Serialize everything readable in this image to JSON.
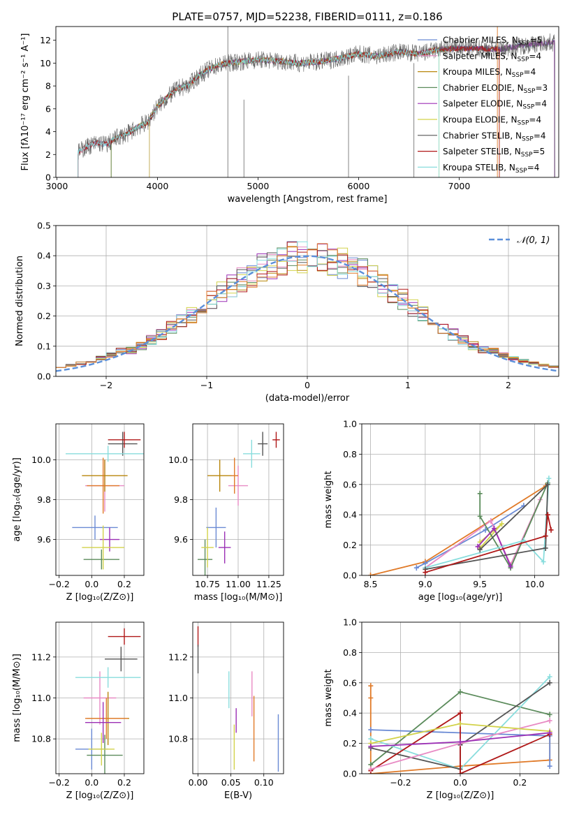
{
  "colors": {
    "miles_chabrier": "#6a8ad4",
    "miles_salpeter": "#e88ac4",
    "miles_kroupa": "#b8860b",
    "elodie_chabrier": "#5b8b5b",
    "elodie_salpeter": "#9b2fb5",
    "elodie_kroupa": "#d2d24a",
    "stelib_chabrier": "#555555",
    "stelib_salpeter": "#b01818",
    "stelib_kroupa": "#88dddd",
    "orange": "#e07a28",
    "normal_curve": "#5b8fd9"
  },
  "chart_data": [
    {
      "id": "spectrum",
      "type": "line",
      "title": "PLATE=0757, MJD=52238, FIBERID=0111, z=0.186",
      "xlabel": "wavelength [Angstrom, rest frame]",
      "ylabel": "Flux [fλ10⁻¹⁷ erg cm⁻² s⁻¹ A⁻¹]",
      "xlim": [
        2990,
        7990
      ],
      "ylim": [
        0,
        13.2
      ],
      "xticks": [
        "3000",
        "4000",
        "5000",
        "6000",
        "7000"
      ],
      "yticks": [
        "0",
        "2",
        "4",
        "6",
        "8",
        "10",
        "12"
      ],
      "legend_position": "upper-right",
      "legend": [
        {
          "label": "Chabrier MILES, N",
          "sub": "SSP",
          "suffix": "=5",
          "color_key": "miles_chabrier"
        },
        {
          "label": "Salpeter MILES, N",
          "sub": "SSP",
          "suffix": "=4",
          "color_key": "miles_salpeter"
        },
        {
          "label": "Kroupa MILES, N",
          "sub": "SSP",
          "suffix": "=4",
          "color_key": "miles_kroupa"
        },
        {
          "label": "Chabrier ELODIE, N",
          "sub": "SSP",
          "suffix": "=3",
          "color_key": "elodie_chabrier"
        },
        {
          "label": "Salpeter ELODIE, N",
          "sub": "SSP",
          "suffix": "=4",
          "color_key": "elodie_salpeter"
        },
        {
          "label": "Kroupa ELODIE, N",
          "sub": "SSP",
          "suffix": "=4",
          "color_key": "elodie_kroupa"
        },
        {
          "label": "Chabrier STELIB, N",
          "sub": "SSP",
          "suffix": "=4",
          "color_key": "stelib_chabrier"
        },
        {
          "label": "Salpeter STELIB, N",
          "sub": "SSP",
          "suffix": "=5",
          "color_key": "stelib_salpeter"
        },
        {
          "label": "Kroupa STELIB, N",
          "sub": "SSP",
          "suffix": "=4",
          "color_key": "stelib_kroupa"
        }
      ],
      "continuum": {
        "x": [
          3210,
          3300,
          3400,
          3500,
          3600,
          3700,
          3800,
          3900,
          4000,
          4100,
          4200,
          4300,
          4400,
          4500,
          4600,
          4700,
          4800,
          4900,
          5000,
          5200,
          5400,
          5600,
          5800,
          6000,
          6200,
          6400,
          6600,
          6800,
          7000,
          7200,
          7400,
          7600,
          7900
        ],
        "y": [
          2.2,
          2.7,
          3.0,
          2.9,
          3.5,
          3.8,
          4.4,
          4.8,
          6.2,
          7.0,
          7.8,
          8.0,
          8.8,
          9.4,
          9.8,
          10.0,
          10.1,
          10.2,
          10.3,
          10.2,
          10.0,
          10.1,
          10.4,
          10.8,
          10.6,
          11.0,
          10.8,
          11.2,
          11.3,
          11.3,
          11.2,
          11.5,
          11.8
        ]
      },
      "start_wavelengths": [
        3210,
        3210,
        3540,
        3540,
        3920,
        3920,
        3210,
        3210,
        3210
      ],
      "end_wavelengths": [
        7950,
        7950,
        7400,
        7950,
        7950,
        6800,
        7950,
        7400,
        6800
      ]
    },
    {
      "id": "residuals",
      "type": "histogram",
      "xlabel": "(data-model)/error",
      "ylabel": "Normed distribution",
      "xlim": [
        -2.5,
        2.5
      ],
      "ylim": [
        0,
        0.5
      ],
      "xticks": [
        "−2",
        "−1",
        "0",
        "1",
        "2"
      ],
      "yticks": [
        "0.0",
        "0.1",
        "0.2",
        "0.3",
        "0.4",
        "0.5"
      ],
      "bin_width": 0.1,
      "legend_position": "upper-right",
      "legend": [
        {
          "label": "𝒩(0, 1)",
          "color_key": "normal_curve"
        }
      ]
    },
    {
      "id": "age_vs_Z",
      "type": "errorbar",
      "xlabel": "Z [log₁₀(Z/Z⊙)]",
      "ylabel": "age  [log₁₀(age/yr)]",
      "xlim": [
        -0.22,
        0.32
      ],
      "ylim": [
        9.42,
        10.18
      ],
      "xticks": [
        "−0.2",
        "0.0",
        "0.2"
      ],
      "yticks": [
        "9.6",
        "9.8",
        "10.0"
      ],
      "points": [
        {
          "key": "miles_chabrier",
          "x": 0.02,
          "y": 9.66,
          "xerr": 0.14,
          "yerr": 0.06
        },
        {
          "key": "miles_salpeter",
          "x": 0.08,
          "y": 9.87,
          "xerr": 0.12,
          "yerr": 0.13
        },
        {
          "key": "miles_kroupa",
          "x": 0.08,
          "y": 9.92,
          "xerr": 0.14,
          "yerr": 0.08
        },
        {
          "key": "orange",
          "x": 0.07,
          "y": 9.87,
          "xerr": 0.1,
          "yerr": 0.14
        },
        {
          "key": "elodie_chabrier",
          "x": 0.06,
          "y": 9.5,
          "xerr": 0.11,
          "yerr": 0.05
        },
        {
          "key": "elodie_salpeter",
          "x": 0.11,
          "y": 9.6,
          "xerr": 0.06,
          "yerr": 0.06
        },
        {
          "key": "elodie_kroupa",
          "x": 0.07,
          "y": 9.56,
          "xerr": 0.13,
          "yerr": 0.11
        },
        {
          "key": "stelib_chabrier",
          "x": 0.19,
          "y": 10.08,
          "xerr": 0.09,
          "yerr": 0.06
        },
        {
          "key": "stelib_salpeter",
          "x": 0.2,
          "y": 10.1,
          "xerr": 0.1,
          "yerr": 0.04
        },
        {
          "key": "stelib_kroupa",
          "x": 0.1,
          "y": 10.03,
          "xerr": 0.26,
          "yerr": 0.04
        }
      ]
    },
    {
      "id": "age_vs_mass",
      "type": "errorbar",
      "xlabel": "mass [log₁₀(M/M⊙)]",
      "xlim": [
        10.63,
        11.37
      ],
      "ylim": [
        9.42,
        10.18
      ],
      "xticks": [
        "10.75",
        "11.00",
        "11.25"
      ],
      "yticks": [
        "9.6",
        "9.8",
        "10.0"
      ],
      "points": [
        {
          "key": "miles_chabrier",
          "x": 10.82,
          "y": 9.66,
          "xerr": 0.08,
          "yerr": 0.1
        },
        {
          "key": "miles_salpeter",
          "x": 11.0,
          "y": 9.87,
          "xerr": 0.08,
          "yerr": 0.1
        },
        {
          "key": "miles_kroupa",
          "x": 10.85,
          "y": 9.92,
          "xerr": 0.1,
          "yerr": 0.08
        },
        {
          "key": "orange",
          "x": 10.97,
          "y": 9.92,
          "xerr": 0.03,
          "yerr": 0.09
        },
        {
          "key": "elodie_chabrier",
          "x": 10.73,
          "y": 9.5,
          "xerr": 0.06,
          "yerr": 0.1
        },
        {
          "key": "elodie_salpeter",
          "x": 10.89,
          "y": 9.56,
          "xerr": 0.05,
          "yerr": 0.08
        },
        {
          "key": "elodie_kroupa",
          "x": 10.75,
          "y": 9.56,
          "xerr": 0.05,
          "yerr": 0.1
        },
        {
          "key": "stelib_chabrier",
          "x": 11.2,
          "y": 10.08,
          "xerr": 0.04,
          "yerr": 0.06
        },
        {
          "key": "stelib_salpeter",
          "x": 11.31,
          "y": 10.1,
          "xerr": 0.03,
          "yerr": 0.04
        },
        {
          "key": "stelib_kroupa",
          "x": 11.11,
          "y": 10.03,
          "xerr": 0.07,
          "yerr": 0.07
        }
      ]
    },
    {
      "id": "weight_vs_age",
      "type": "line",
      "xlabel": "age  [log₁₀(age/yr)]",
      "ylabel": "mass weight",
      "xlim": [
        8.42,
        10.22
      ],
      "ylim": [
        0,
        1
      ],
      "xticks": [
        "8.5",
        "9.0",
        "9.5",
        "10.0"
      ],
      "yticks": [
        "0.0",
        "0.2",
        "0.4",
        "0.6",
        "0.8",
        "1.0"
      ],
      "series": [
        {
          "key": "orange",
          "x": [
            8.5,
            9.0,
            10.1
          ],
          "y": [
            0.0,
            0.09,
            0.59
          ]
        },
        {
          "key": "miles_chabrier",
          "x": [
            8.92,
            9.0,
            9.55,
            9.9
          ],
          "y": [
            0.05,
            0.08,
            0.3,
            0.46
          ]
        },
        {
          "key": "miles_salpeter",
          "x": [
            9.0,
            9.6,
            9.78,
            10.05
          ],
          "y": [
            0.05,
            0.36,
            0.07,
            0.5
          ]
        },
        {
          "key": "elodie_kroupa",
          "x": [
            9.5,
            9.7,
            9.5
          ],
          "y": [
            0.18,
            0.34,
            0.22
          ]
        },
        {
          "key": "elodie_chabrier",
          "x": [
            9.5,
            9.5,
            9.78,
            10.12
          ],
          "y": [
            0.54,
            0.39,
            0.05,
            0.61
          ]
        },
        {
          "key": "elodie_salpeter",
          "x": [
            9.48,
            9.63,
            9.78
          ],
          "y": [
            0.19,
            0.31,
            0.06
          ]
        },
        {
          "key": "stelib_kroupa",
          "x": [
            9.0,
            9.9,
            10.08,
            10.13
          ],
          "y": [
            0.05,
            0.23,
            0.09,
            0.64
          ]
        },
        {
          "key": "stelib_chabrier",
          "x": [
            9.0,
            10.1,
            10.12,
            9.5
          ],
          "y": [
            0.04,
            0.18,
            0.6,
            0.17
          ]
        },
        {
          "key": "stelib_salpeter",
          "x": [
            9.0,
            10.1,
            10.12,
            10.15
          ],
          "y": [
            0.02,
            0.26,
            0.4,
            0.3
          ]
        }
      ]
    },
    {
      "id": "mass_vs_Z",
      "type": "errorbar",
      "xlabel": "Z [log₁₀(Z/Z⊙)]",
      "ylabel": "mass [log₁₀(M/M⊙)]",
      "xlim": [
        -0.22,
        0.32
      ],
      "ylim": [
        10.63,
        11.37
      ],
      "xticks": [
        "−0.2",
        "0.0",
        "0.2"
      ],
      "yticks": [
        "10.8",
        "11.0",
        "11.2"
      ],
      "points": [
        {
          "key": "miles_chabrier",
          "x": 0.0,
          "y": 10.75,
          "xerr": 0.1,
          "yerr": 0.1
        },
        {
          "key": "miles_salpeter",
          "x": 0.05,
          "y": 11.0,
          "xerr": 0.1,
          "yerr": 0.13
        },
        {
          "key": "miles_kroupa",
          "x": 0.1,
          "y": 10.9,
          "xerr": 0.13,
          "yerr": 0.13
        },
        {
          "key": "orange",
          "x": 0.09,
          "y": 10.9,
          "xerr": 0.13,
          "yerr": 0.1
        },
        {
          "key": "elodie_chabrier",
          "x": 0.08,
          "y": 10.72,
          "xerr": 0.11,
          "yerr": 0.1
        },
        {
          "key": "elodie_salpeter",
          "x": 0.07,
          "y": 10.88,
          "xerr": 0.11,
          "yerr": 0.1
        },
        {
          "key": "elodie_kroupa",
          "x": 0.06,
          "y": 10.75,
          "xerr": 0.08,
          "yerr": 0.08
        },
        {
          "key": "stelib_chabrier",
          "x": 0.18,
          "y": 11.19,
          "xerr": 0.1,
          "yerr": 0.06
        },
        {
          "key": "stelib_salpeter",
          "x": 0.2,
          "y": 11.3,
          "xerr": 0.1,
          "yerr": 0.04
        },
        {
          "key": "stelib_kroupa",
          "x": 0.1,
          "y": 11.1,
          "xerr": 0.2,
          "yerr": 0.05
        }
      ]
    },
    {
      "id": "mass_vs_ebv",
      "type": "errorbar",
      "xlabel": "E(B-V)",
      "xlim": [
        -0.008,
        0.13
      ],
      "ylim": [
        10.63,
        11.37
      ],
      "xticks": [
        "0.00",
        "0.05",
        "0.10"
      ],
      "yticks": [
        "10.8",
        "11.0",
        "11.2"
      ],
      "points": [
        {
          "key": "stelib_salpeter",
          "x": 0.0,
          "y": 11.3,
          "xerr": 0,
          "yerr": 0.05
        },
        {
          "key": "stelib_chabrier",
          "x": 0.0,
          "y": 11.19,
          "xerr": 0,
          "yerr": 0.07
        },
        {
          "key": "stelib_kroupa",
          "x": 0.047,
          "y": 11.04,
          "xerr": 0,
          "yerr": 0.09
        },
        {
          "key": "miles_salpeter",
          "x": 0.082,
          "y": 11.02,
          "xerr": 0,
          "yerr": 0.11
        },
        {
          "key": "orange",
          "x": 0.085,
          "y": 10.85,
          "xerr": 0,
          "yerr": 0.16
        },
        {
          "key": "elodie_salpeter",
          "x": 0.058,
          "y": 10.89,
          "xerr": 0,
          "yerr": 0.06
        },
        {
          "key": "elodie_kroupa",
          "x": 0.055,
          "y": 10.76,
          "xerr": 0,
          "yerr": 0.11
        },
        {
          "key": "miles_chabrier",
          "x": 0.122,
          "y": 10.78,
          "xerr": 0,
          "yerr": 0.14
        }
      ]
    },
    {
      "id": "weight_vs_Z",
      "type": "line",
      "xlabel": "Z [log₁₀(Z/Z⊙)]",
      "ylabel": "mass weight",
      "xlim": [
        -0.33,
        0.33
      ],
      "ylim": [
        0,
        1
      ],
      "xticks": [
        "−0.2",
        "0.0",
        "0.2"
      ],
      "yticks": [
        "0.0",
        "0.2",
        "0.4",
        "0.6",
        "0.8",
        "1.0"
      ],
      "series": [
        {
          "key": "orange",
          "x": [
            -0.3,
            -0.3,
            -0.3,
            0.0,
            0.3,
            0.3
          ],
          "y": [
            0.58,
            0.5,
            0.0,
            0.05,
            0.09,
            0.25
          ]
        },
        {
          "key": "miles_chabrier",
          "x": [
            -0.3,
            0.3,
            0.3
          ],
          "y": [
            0.29,
            0.25,
            0.05
          ]
        },
        {
          "key": "elodie_chabrier",
          "x": [
            -0.3,
            0.0,
            0.3
          ],
          "y": [
            0.06,
            0.54,
            0.39
          ]
        },
        {
          "key": "stelib_kroupa",
          "x": [
            -0.3,
            0.0,
            0.3
          ],
          "y": [
            0.23,
            0.03,
            0.64
          ]
        },
        {
          "key": "stelib_chabrier",
          "x": [
            -0.3,
            0.0,
            0.0,
            0.3
          ],
          "y": [
            0.17,
            0.03,
            0.19,
            0.6
          ]
        },
        {
          "key": "stelib_salpeter",
          "x": [
            -0.3,
            0.0,
            0.0,
            0.3
          ],
          "y": [
            0.02,
            0.4,
            0.0,
            0.26
          ]
        },
        {
          "key": "miles_salpeter",
          "x": [
            -0.3,
            0.0,
            0.3
          ],
          "y": [
            0.03,
            0.2,
            0.35
          ]
        },
        {
          "key": "elodie_kroupa",
          "x": [
            -0.3,
            0.0,
            0.3
          ],
          "y": [
            0.2,
            0.33,
            0.28
          ]
        },
        {
          "key": "elodie_salpeter",
          "x": [
            -0.3,
            0.0,
            0.3
          ],
          "y": [
            0.18,
            0.21,
            0.27
          ]
        }
      ]
    }
  ]
}
